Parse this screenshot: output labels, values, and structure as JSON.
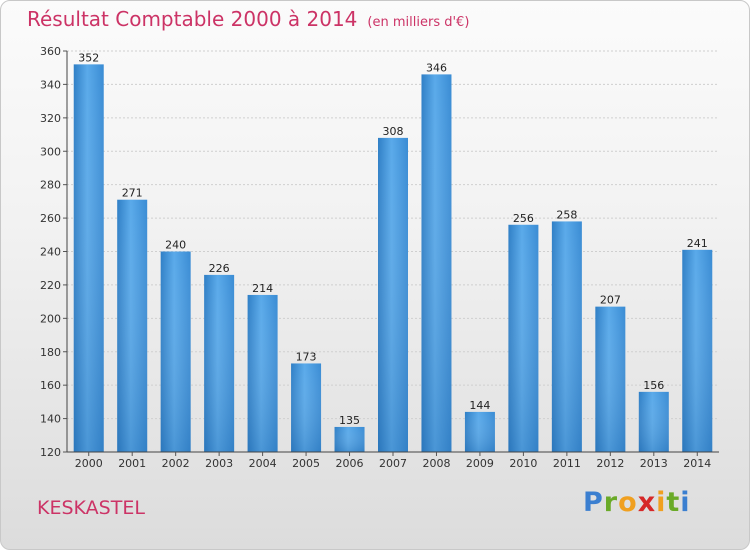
{
  "chart_data": {
    "type": "bar",
    "title": "Résultat Comptable 2000 à 2014",
    "unit": "(en milliers d'€)",
    "categories": [
      "2000",
      "2001",
      "2002",
      "2003",
      "2004",
      "2005",
      "2006",
      "2007",
      "2008",
      "2009",
      "2010",
      "2011",
      "2012",
      "2013",
      "2014"
    ],
    "values": [
      352,
      271,
      240,
      226,
      214,
      173,
      135,
      308,
      346,
      144,
      256,
      258,
      207,
      156,
      241
    ],
    "ylim": [
      120,
      360
    ],
    "yticks": [
      120,
      140,
      160,
      180,
      200,
      220,
      240,
      260,
      280,
      300,
      320,
      340,
      360
    ],
    "xlabel": "",
    "ylabel": "",
    "grid": true,
    "bar_color": "#3d8fd6"
  },
  "commune": "KESKASTEL",
  "logo": {
    "letters": [
      "P",
      "r",
      "o",
      "x",
      "i",
      "t",
      "i"
    ],
    "colors": [
      "#3b7fd0",
      "#6aaa28",
      "#f0a020",
      "#d62828",
      "#f0a020",
      "#6aaa28",
      "#3b7fd0"
    ]
  }
}
